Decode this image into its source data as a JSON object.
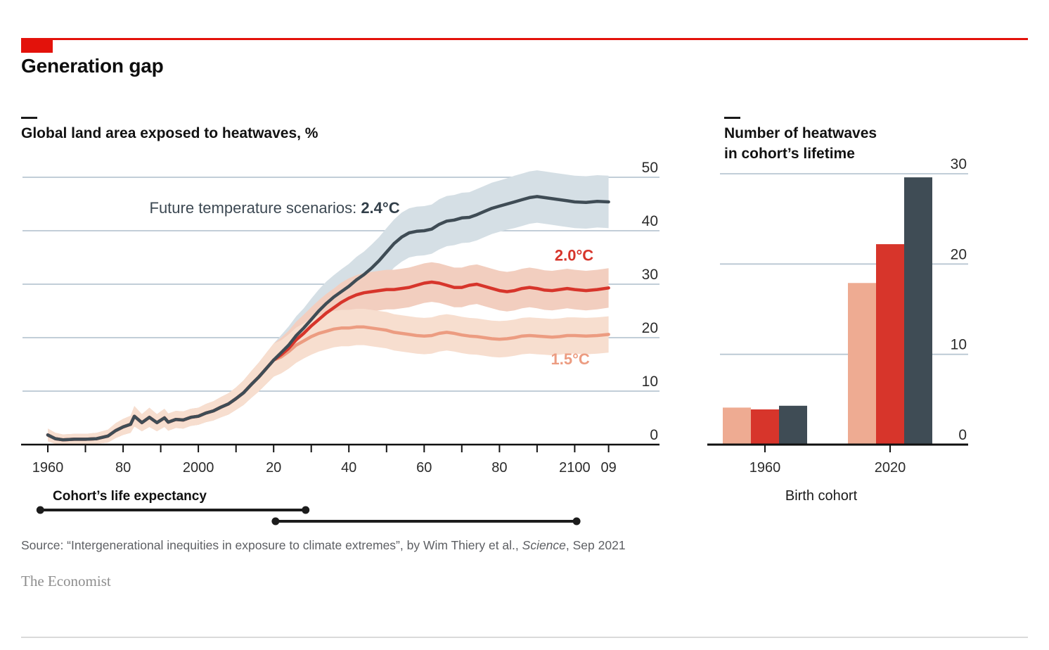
{
  "theme": {
    "accent_red": "#e3120b",
    "grid_color": "#b9c7d2",
    "ink": "#0e0e0e",
    "slate": "#3f4c55",
    "scarlet": "#d7352b",
    "salmon": "#ec9c81",
    "source_gray": "#5d5f63",
    "brand_gray": "#8e8e8e"
  },
  "header": {
    "title": "Generation gap"
  },
  "footer": {
    "source_prefix": "Source: “Intergenerational inequities in exposure to climate extremes”, by Wim Thiery et al., ",
    "source_italic": "Science",
    "source_suffix": ", Sep 2021",
    "brand": "The Economist"
  },
  "chart_data": [
    {
      "id": "global-land-area-heatwaves",
      "type": "line",
      "title": "Global land area exposed to heatwaves, %",
      "ylim": [
        0,
        50
      ],
      "yticks": [
        0,
        10,
        20,
        30,
        40,
        50
      ],
      "grid": "on",
      "legend_position": "inline-labels",
      "x_ticks": [
        [
          1960,
          "1960"
        ],
        [
          1970,
          ""
        ],
        [
          1980,
          "80"
        ],
        [
          1990,
          ""
        ],
        [
          2000,
          "2000"
        ],
        [
          2010,
          ""
        ],
        [
          2020,
          "20"
        ],
        [
          2030,
          ""
        ],
        [
          2040,
          "40"
        ],
        [
          2050,
          ""
        ],
        [
          2060,
          "60"
        ],
        [
          2070,
          ""
        ],
        [
          2080,
          "80"
        ],
        [
          2090,
          ""
        ],
        [
          2100,
          "2100"
        ],
        [
          2109,
          "09"
        ]
      ],
      "annotation": {
        "prefix": "Future temperature scenarios: ",
        "bold": "2.4°C",
        "year": 1987,
        "value": 43.3
      },
      "history_note": "shared 1960-2020 observed values for all scenarios, [year, %, band half-width]",
      "history": [
        [
          1960,
          1.8,
          1.2
        ],
        [
          1962,
          1.1,
          1.1
        ],
        [
          1964,
          0.9,
          1.0
        ],
        [
          1967,
          1.0,
          1.0
        ],
        [
          1970,
          1.0,
          1.0
        ],
        [
          1973,
          1.1,
          1.1
        ],
        [
          1976,
          1.6,
          1.2
        ],
        [
          1978,
          2.6,
          1.4
        ],
        [
          1980,
          3.3,
          1.5
        ],
        [
          1982,
          3.8,
          1.6
        ],
        [
          1983,
          5.3,
          1.9
        ],
        [
          1985,
          4.1,
          1.6
        ],
        [
          1987,
          5.1,
          1.8
        ],
        [
          1989,
          4.1,
          1.6
        ],
        [
          1991,
          5.0,
          1.7
        ],
        [
          1992,
          4.2,
          1.6
        ],
        [
          1994,
          4.7,
          1.6
        ],
        [
          1996,
          4.6,
          1.6
        ],
        [
          1998,
          5.1,
          1.6
        ],
        [
          2000,
          5.3,
          1.6
        ],
        [
          2002,
          5.9,
          1.7
        ],
        [
          2004,
          6.3,
          1.8
        ],
        [
          2006,
          7.0,
          1.9
        ],
        [
          2008,
          7.6,
          2.0
        ],
        [
          2010,
          8.6,
          2.1
        ],
        [
          2012,
          9.7,
          2.3
        ],
        [
          2014,
          11.2,
          2.5
        ],
        [
          2016,
          12.6,
          2.7
        ],
        [
          2018,
          14.2,
          2.9
        ],
        [
          2020,
          15.8,
          3.1
        ]
      ],
      "series": [
        {
          "name": "1.5°C",
          "line_color": "#ec9c81",
          "band_color": "#f7decf",
          "label": {
            "year": 2104,
            "value": 15.0
          },
          "points": [
            [
              2022,
              16.4,
              3.1
            ],
            [
              2024,
              17.4,
              3.2
            ],
            [
              2026,
              18.6,
              3.3
            ],
            [
              2028,
              19.4,
              3.3
            ],
            [
              2030,
              20.2,
              3.4
            ],
            [
              2032,
              20.8,
              3.4
            ],
            [
              2034,
              21.2,
              3.4
            ],
            [
              2036,
              21.6,
              3.4
            ],
            [
              2038,
              21.8,
              3.4
            ],
            [
              2040,
              21.8,
              3.4
            ],
            [
              2042,
              22.0,
              3.4
            ],
            [
              2044,
              22.0,
              3.4
            ],
            [
              2046,
              21.8,
              3.4
            ],
            [
              2048,
              21.6,
              3.4
            ],
            [
              2050,
              21.4,
              3.4
            ],
            [
              2052,
              21.0,
              3.4
            ],
            [
              2054,
              20.8,
              3.4
            ],
            [
              2056,
              20.6,
              3.4
            ],
            [
              2058,
              20.4,
              3.4
            ],
            [
              2060,
              20.3,
              3.4
            ],
            [
              2062,
              20.4,
              3.4
            ],
            [
              2064,
              20.8,
              3.4
            ],
            [
              2066,
              21.0,
              3.4
            ],
            [
              2068,
              20.8,
              3.4
            ],
            [
              2070,
              20.5,
              3.4
            ],
            [
              2072,
              20.3,
              3.4
            ],
            [
              2074,
              20.2,
              3.4
            ],
            [
              2076,
              20.0,
              3.4
            ],
            [
              2078,
              19.8,
              3.4
            ],
            [
              2080,
              19.7,
              3.4
            ],
            [
              2082,
              19.8,
              3.4
            ],
            [
              2084,
              20.0,
              3.4
            ],
            [
              2086,
              20.3,
              3.4
            ],
            [
              2088,
              20.4,
              3.4
            ],
            [
              2090,
              20.3,
              3.4
            ],
            [
              2092,
              20.2,
              3.4
            ],
            [
              2094,
              20.1,
              3.4
            ],
            [
              2096,
              20.2,
              3.4
            ],
            [
              2098,
              20.4,
              3.4
            ],
            [
              2100,
              20.4,
              3.4
            ],
            [
              2103,
              20.3,
              3.4
            ],
            [
              2106,
              20.4,
              3.4
            ],
            [
              2109,
              20.6,
              3.4
            ]
          ]
        },
        {
          "name": "2.0°C",
          "line_color": "#d7352b",
          "band_color": "#f2cebf",
          "label": {
            "year": 2105,
            "value": 34.4
          },
          "points": [
            [
              2022,
              16.8,
              3.2
            ],
            [
              2024,
              18.0,
              3.3
            ],
            [
              2026,
              19.6,
              3.4
            ],
            [
              2028,
              20.8,
              3.5
            ],
            [
              2030,
              22.2,
              3.5
            ],
            [
              2032,
              23.4,
              3.6
            ],
            [
              2034,
              24.6,
              3.6
            ],
            [
              2036,
              25.6,
              3.6
            ],
            [
              2038,
              26.6,
              3.7
            ],
            [
              2040,
              27.4,
              3.7
            ],
            [
              2042,
              28.0,
              3.7
            ],
            [
              2044,
              28.4,
              3.7
            ],
            [
              2046,
              28.6,
              3.7
            ],
            [
              2048,
              28.8,
              3.7
            ],
            [
              2050,
              29.0,
              3.7
            ],
            [
              2052,
              29.0,
              3.7
            ],
            [
              2054,
              29.2,
              3.7
            ],
            [
              2056,
              29.4,
              3.7
            ],
            [
              2058,
              29.8,
              3.7
            ],
            [
              2060,
              30.2,
              3.7
            ],
            [
              2062,
              30.4,
              3.7
            ],
            [
              2064,
              30.2,
              3.7
            ],
            [
              2066,
              29.8,
              3.7
            ],
            [
              2068,
              29.4,
              3.7
            ],
            [
              2070,
              29.4,
              3.7
            ],
            [
              2072,
              29.8,
              3.7
            ],
            [
              2074,
              30.0,
              3.7
            ],
            [
              2076,
              29.6,
              3.7
            ],
            [
              2078,
              29.2,
              3.7
            ],
            [
              2080,
              28.8,
              3.7
            ],
            [
              2082,
              28.6,
              3.7
            ],
            [
              2084,
              28.8,
              3.7
            ],
            [
              2086,
              29.2,
              3.7
            ],
            [
              2088,
              29.4,
              3.7
            ],
            [
              2090,
              29.2,
              3.7
            ],
            [
              2092,
              28.9,
              3.7
            ],
            [
              2094,
              28.8,
              3.7
            ],
            [
              2096,
              29.0,
              3.7
            ],
            [
              2098,
              29.2,
              3.7
            ],
            [
              2100,
              29.0,
              3.7
            ],
            [
              2103,
              28.8,
              3.7
            ],
            [
              2106,
              29.0,
              3.7
            ],
            [
              2109,
              29.3,
              3.7
            ]
          ]
        },
        {
          "name": "2.4°C",
          "line_color": "#3f4c55",
          "band_color": "#d5dfe5",
          "label": null,
          "points": [
            [
              2022,
              17.2,
              3.3
            ],
            [
              2024,
              18.6,
              3.5
            ],
            [
              2026,
              20.4,
              3.6
            ],
            [
              2028,
              21.8,
              3.7
            ],
            [
              2030,
              23.4,
              3.9
            ],
            [
              2032,
              25.0,
              4.0
            ],
            [
              2034,
              26.4,
              4.1
            ],
            [
              2036,
              27.6,
              4.1
            ],
            [
              2038,
              28.6,
              4.2
            ],
            [
              2040,
              29.6,
              4.2
            ],
            [
              2042,
              30.8,
              4.3
            ],
            [
              2044,
              31.8,
              4.3
            ],
            [
              2046,
              33.0,
              4.4
            ],
            [
              2048,
              34.4,
              4.4
            ],
            [
              2050,
              36.0,
              4.5
            ],
            [
              2052,
              37.6,
              4.5
            ],
            [
              2054,
              38.8,
              4.6
            ],
            [
              2056,
              39.6,
              4.6
            ],
            [
              2058,
              39.9,
              4.6
            ],
            [
              2060,
              40.0,
              4.6
            ],
            [
              2062,
              40.3,
              4.6
            ],
            [
              2064,
              41.2,
              4.7
            ],
            [
              2066,
              41.8,
              4.7
            ],
            [
              2068,
              42.0,
              4.7
            ],
            [
              2070,
              42.4,
              4.7
            ],
            [
              2072,
              42.5,
              4.7
            ],
            [
              2074,
              43.0,
              4.8
            ],
            [
              2076,
              43.6,
              4.8
            ],
            [
              2078,
              44.2,
              4.8
            ],
            [
              2080,
              44.6,
              4.8
            ],
            [
              2082,
              45.0,
              4.8
            ],
            [
              2084,
              45.4,
              4.9
            ],
            [
              2086,
              45.8,
              4.9
            ],
            [
              2088,
              46.2,
              4.9
            ],
            [
              2090,
              46.4,
              4.9
            ],
            [
              2092,
              46.2,
              4.9
            ],
            [
              2094,
              46.0,
              4.9
            ],
            [
              2096,
              45.8,
              4.9
            ],
            [
              2098,
              45.6,
              4.9
            ],
            [
              2100,
              45.4,
              4.9
            ],
            [
              2103,
              45.3,
              4.9
            ],
            [
              2106,
              45.5,
              4.9
            ],
            [
              2109,
              45.4,
              4.9
            ]
          ]
        }
      ],
      "life_expectancy": {
        "label": "Cohort’s life expectancy",
        "segments": [
          {
            "from": 1958,
            "to": 2028.5
          },
          {
            "from": 2020.5,
            "to": 2100.5
          }
        ]
      }
    },
    {
      "id": "heatwaves-per-lifetime",
      "type": "bar",
      "title_lines": [
        "Number of heatwaves",
        "in cohort’s lifetime"
      ],
      "categories": [
        "1960",
        "2020"
      ],
      "series": [
        {
          "name": "1.5°C",
          "color": "#eeab92",
          "values": [
            4.1,
            17.9
          ]
        },
        {
          "name": "2.0°C",
          "color": "#d7352b",
          "values": [
            3.9,
            22.2
          ]
        },
        {
          "name": "2.4°C",
          "color": "#3f4c55",
          "values": [
            4.3,
            29.6
          ]
        }
      ],
      "xlabel": "Birth cohort",
      "ylim": [
        0,
        30
      ],
      "yticks": [
        0,
        10,
        20,
        30
      ],
      "grid": "on"
    }
  ]
}
